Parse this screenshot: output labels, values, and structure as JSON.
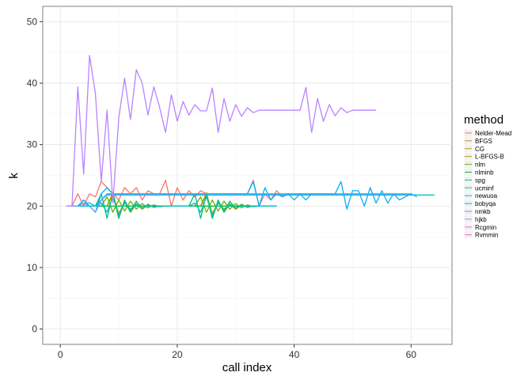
{
  "chart_data": {
    "type": "line",
    "xlabel": "call index",
    "ylabel": "k",
    "xlim": [
      -3,
      67
    ],
    "ylim": [
      -2.5,
      52.5
    ],
    "x_ticks": [
      0,
      20,
      40,
      60
    ],
    "y_ticks": [
      0,
      10,
      20,
      30,
      40,
      50
    ],
    "x_tick_labels": [
      "0",
      "20",
      "40",
      "60"
    ],
    "y_tick_labels": [
      "0",
      "10",
      "20",
      "30",
      "40",
      "50"
    ],
    "grid": true,
    "legend": {
      "title": "method",
      "placement": "right"
    },
    "series": [
      {
        "name": "Nelder-Mead",
        "color": "#F8766D",
        "x": [
          1,
          2,
          3,
          4,
          5,
          6,
          7,
          8,
          9,
          10,
          11,
          12,
          13,
          14,
          15,
          16,
          17,
          18,
          19,
          20,
          21,
          22,
          23,
          24,
          25,
          26,
          27,
          28,
          29,
          30,
          31,
          32,
          33,
          34,
          35,
          36,
          37,
          38,
          39,
          40,
          41,
          42,
          43,
          44,
          45
        ],
        "y": [
          20,
          20,
          22,
          20,
          22,
          21.5,
          24,
          23,
          22,
          21,
          23,
          22,
          23,
          21,
          22.5,
          22,
          22,
          24.2,
          20,
          23,
          21,
          22.5,
          21.5,
          22.5,
          22,
          22,
          22,
          22,
          22,
          22,
          22,
          22,
          24.2,
          20,
          22,
          21,
          22.5,
          21.5,
          22,
          22,
          22,
          22,
          22,
          22,
          22
        ]
      },
      {
        "name": "BFGS",
        "color": "#E58700",
        "x": [
          1,
          2,
          3,
          4,
          5,
          6,
          7,
          8,
          9,
          10,
          11,
          12,
          13,
          14,
          15,
          16,
          17,
          18,
          19,
          20,
          21,
          22,
          23,
          24,
          25,
          26,
          27,
          28,
          29,
          30,
          31,
          32,
          33,
          34,
          35
        ],
        "y": [
          20,
          20,
          20,
          20,
          20,
          20,
          20,
          20,
          22,
          18,
          20.8,
          19,
          20.3,
          19.5,
          20.1,
          19.9,
          20,
          20,
          20,
          20,
          20,
          20,
          20,
          20,
          22,
          18,
          20.8,
          19,
          20.3,
          19.5,
          20.1,
          19.9,
          20,
          20,
          20
        ]
      },
      {
        "name": "CG",
        "color": "#C99800",
        "x": [
          1,
          2,
          3,
          4,
          5,
          6,
          7,
          8,
          9,
          10,
          11,
          12,
          13,
          14,
          15,
          16,
          17,
          18,
          19,
          20,
          21,
          22,
          23,
          24,
          25,
          26,
          27,
          28,
          29,
          30,
          31,
          32,
          33,
          34,
          35
        ],
        "y": [
          20,
          20,
          20,
          20,
          20,
          20,
          20,
          20,
          22.2,
          18.5,
          20.7,
          19.2,
          20.4,
          19.6,
          20.2,
          19.8,
          20,
          20,
          20,
          20,
          20,
          20,
          20,
          20,
          22.2,
          18.5,
          20.7,
          19.2,
          20.4,
          19.6,
          20.2,
          19.8,
          20,
          20,
          20
        ]
      },
      {
        "name": "L-BFGS-B",
        "color": "#A3A500",
        "x": [
          1,
          2,
          3,
          4,
          5,
          6,
          7,
          8,
          9,
          10,
          11,
          12,
          13,
          14,
          15,
          16,
          17,
          18,
          19,
          20,
          21,
          22,
          23,
          24,
          25,
          26,
          27,
          28,
          29,
          30,
          31,
          32,
          33,
          34,
          35
        ],
        "y": [
          20,
          20,
          20,
          20,
          20,
          20,
          20,
          20,
          21.8,
          18.8,
          20.6,
          19.3,
          20.3,
          19.7,
          20.1,
          19.9,
          20,
          20,
          20,
          20,
          20,
          20,
          20,
          20,
          21.8,
          18.8,
          20.6,
          19.3,
          20.3,
          19.7,
          20.1,
          19.9,
          20,
          20,
          20
        ]
      },
      {
        "name": "nlm",
        "color": "#6BB100",
        "x": [
          1,
          2,
          3,
          4,
          5,
          6,
          7,
          8,
          9,
          10,
          11,
          12,
          13,
          14,
          15,
          16,
          17,
          18,
          19,
          20,
          21,
          22,
          23,
          24,
          25,
          26,
          27,
          28,
          29,
          30,
          31,
          32,
          33,
          34,
          35
        ],
        "y": [
          20,
          20,
          20,
          20,
          20,
          20,
          20,
          21.5,
          19,
          21,
          19.2,
          20.8,
          19.5,
          20.4,
          19.7,
          20.2,
          19.9,
          20,
          20,
          20,
          20,
          20,
          20,
          21.5,
          19,
          21,
          19.2,
          20.8,
          19.5,
          20.4,
          19.7,
          20.2,
          19.9,
          20,
          20
        ]
      },
      {
        "name": "nlminb",
        "color": "#00BA38",
        "x": [
          1,
          2,
          3,
          4,
          5,
          6,
          7,
          8,
          9,
          10,
          11,
          12,
          13,
          14,
          15,
          16,
          17,
          18,
          19,
          20,
          21,
          22,
          23,
          24,
          25,
          26,
          27,
          28,
          29,
          30,
          31,
          32,
          33,
          34,
          35
        ],
        "y": [
          20,
          20,
          20,
          20,
          20,
          20,
          20,
          20,
          20,
          20,
          20,
          20,
          20,
          20,
          20,
          20,
          20,
          20,
          20,
          20,
          20,
          20,
          20,
          20,
          20,
          20,
          20,
          20,
          20,
          20,
          20,
          20,
          20,
          20,
          20
        ]
      },
      {
        "name": "spg",
        "color": "#00BF7D",
        "x": [
          1,
          2,
          3,
          4,
          5,
          6,
          7,
          8,
          9,
          10,
          11,
          12,
          13,
          14,
          15,
          16,
          17,
          18,
          19,
          20,
          21,
          22,
          23,
          24,
          25,
          26,
          27,
          28,
          29,
          30,
          31,
          32,
          33,
          34,
          35,
          36,
          37
        ],
        "y": [
          20,
          20,
          20,
          20,
          20,
          20,
          22,
          18,
          22,
          18,
          21,
          19,
          20.8,
          19.6,
          20.3,
          19.8,
          20,
          20,
          20,
          20,
          20,
          20,
          22,
          18,
          22,
          18,
          21,
          19,
          20.8,
          19.6,
          20.3,
          19.8,
          20,
          20,
          20,
          20,
          20
        ]
      },
      {
        "name": "ucminf",
        "color": "#00C0B8",
        "x": [
          1,
          2,
          3,
          4,
          5,
          6,
          7,
          8,
          9,
          10,
          11,
          12,
          13,
          14,
          15,
          16,
          17,
          18,
          19,
          20,
          21,
          22,
          23,
          24,
          25,
          26,
          27,
          28,
          29,
          30,
          31,
          32,
          33,
          34,
          35,
          36,
          37
        ],
        "y": [
          20,
          20,
          20,
          20,
          20,
          20,
          20.5,
          19,
          21.5,
          18.5,
          20.5,
          19.5,
          20.3,
          19.7,
          20.1,
          19.9,
          20,
          20,
          20,
          20,
          20,
          20,
          20.5,
          19,
          21.5,
          18.5,
          20.5,
          19.5,
          20.3,
          19.7,
          20.1,
          19.9,
          20,
          20,
          20,
          20,
          20
        ]
      },
      {
        "name": "newuoa",
        "color": "#00BCD8",
        "x": [
          1,
          2,
          3,
          4,
          5,
          6,
          7,
          8,
          9,
          10,
          11,
          12,
          13,
          14,
          15,
          16,
          17,
          18,
          19,
          20,
          21,
          22,
          23,
          24,
          25,
          26,
          27,
          28,
          29,
          30,
          31,
          32,
          33,
          34,
          35,
          36,
          37,
          38,
          39,
          40,
          41,
          42,
          43,
          44,
          45,
          46,
          47,
          48,
          49,
          50,
          51,
          52,
          53,
          54,
          55,
          56,
          57,
          58,
          59,
          60,
          61,
          62,
          63,
          64
        ],
        "y": [
          20,
          20,
          20,
          20.5,
          20.5,
          20,
          21,
          21.8,
          21.8,
          21.8,
          21.8,
          21.8,
          21.8,
          21.8,
          21.8,
          21.8,
          21.8,
          21.8,
          21.8,
          21.8,
          21.8,
          21.8,
          21.8,
          21.8,
          21.8,
          21.8,
          21.8,
          21.8,
          21.8,
          21.8,
          21.8,
          21.8,
          21.8,
          21.8,
          21.8,
          21.8,
          21.8,
          21.8,
          21.8,
          21.8,
          21.8,
          21.8,
          21.8,
          21.8,
          21.8,
          21.8,
          21.8,
          21.8,
          21.8,
          21.8,
          21.8,
          21.8,
          21.8,
          21.8,
          21.8,
          21.8,
          21.8,
          21.8,
          21.8,
          21.8,
          21.8,
          21.8,
          21.8,
          21.8
        ]
      },
      {
        "name": "bobyqa",
        "color": "#00B0F6",
        "x": [
          1,
          2,
          3,
          4,
          5,
          6,
          7,
          8,
          9,
          10,
          11,
          12,
          13,
          14,
          15,
          16,
          17,
          18,
          19,
          20,
          21,
          22,
          23,
          24,
          25,
          26,
          27,
          28,
          29,
          30,
          31,
          32,
          33,
          34,
          35,
          36,
          37,
          38,
          39,
          40,
          41,
          42,
          43,
          44,
          45,
          46,
          47,
          48,
          49,
          50,
          51,
          52,
          53,
          54,
          55,
          56,
          57,
          58,
          59,
          60,
          61
        ],
        "y": [
          20,
          20,
          20,
          21,
          20,
          19,
          22,
          23,
          22,
          22,
          22,
          22,
          22,
          22,
          22,
          22,
          22,
          22,
          22,
          22,
          22,
          22,
          22,
          22,
          22,
          22,
          22,
          22,
          22,
          22,
          22,
          22,
          24,
          20,
          23,
          21,
          22,
          21.5,
          22,
          21,
          22,
          21,
          22,
          22,
          22,
          22,
          22,
          24,
          19.5,
          22.5,
          22.5,
          20,
          23,
          20.5,
          22.5,
          20.5,
          22,
          21,
          21.5,
          22,
          21.5
        ]
      },
      {
        "name": "nmkb",
        "color": "#619CFF",
        "x": [
          1,
          2,
          3,
          4,
          5,
          6,
          7,
          8,
          9,
          10,
          11,
          12,
          13,
          14,
          15,
          16,
          17,
          18,
          19,
          20,
          21,
          22,
          23,
          24,
          25,
          26,
          27,
          28,
          29,
          30,
          31,
          32,
          33,
          34,
          35,
          36,
          37,
          38,
          39,
          40,
          41,
          42,
          43,
          44,
          45,
          46,
          47,
          48,
          49,
          50,
          51,
          52,
          53,
          54,
          55,
          56,
          57,
          58,
          59,
          60
        ],
        "y": [
          20,
          20,
          20,
          20.5,
          20,
          19,
          21,
          22,
          22,
          22,
          22,
          22,
          22,
          22,
          22,
          22,
          22,
          22,
          22,
          22,
          22,
          22,
          22,
          22,
          22,
          22,
          22,
          22,
          22,
          22,
          22,
          22,
          22,
          22,
          22,
          22,
          22,
          22,
          22,
          22,
          22,
          22,
          22,
          22,
          22,
          22,
          22,
          22,
          22,
          22,
          22,
          22,
          22,
          22,
          22,
          22,
          22,
          22,
          22,
          22
        ]
      },
      {
        "name": "hjkb",
        "color": "#B983FF",
        "x": [
          1,
          2,
          3,
          4,
          5,
          6,
          7,
          8,
          9,
          10,
          11,
          12,
          13,
          14,
          15,
          16,
          17,
          18,
          19,
          20,
          21,
          22,
          23,
          24,
          25,
          26,
          27,
          28,
          29,
          30,
          31,
          32,
          33,
          34,
          35,
          36,
          37,
          38,
          39,
          40,
          41,
          42,
          43,
          44,
          45,
          46,
          47,
          48,
          49,
          50,
          51,
          52,
          53,
          54
        ],
        "y": [
          20,
          20,
          39.4,
          25.2,
          44.5,
          38.3,
          24,
          35.6,
          20.5,
          34.3,
          40.8,
          34.1,
          42.2,
          40,
          34.8,
          39.4,
          36,
          32,
          38.1,
          33.8,
          37,
          34.8,
          36.5,
          35.5,
          35.5,
          39.2,
          32,
          37.5,
          33.8,
          36.5,
          34.6,
          36,
          35.2,
          35.6,
          35.6,
          35.6,
          35.6,
          35.6,
          35.6,
          35.6,
          35.6,
          39.3,
          32,
          37.5,
          33.8,
          36.5,
          34.7,
          36,
          35.2,
          35.6,
          35.6,
          35.6,
          35.6,
          35.6
        ]
      },
      {
        "name": "Rcgmin",
        "color": "#E76BF3",
        "x": [],
        "y": []
      },
      {
        "name": "Rvmmin",
        "color": "#FD61D1",
        "x": [],
        "y": []
      }
    ]
  }
}
